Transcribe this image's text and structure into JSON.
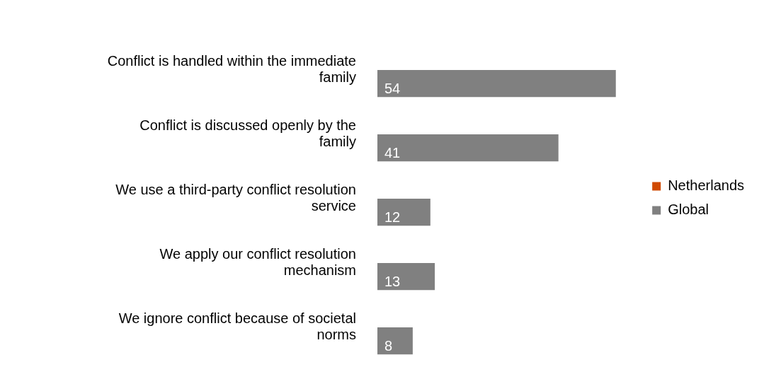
{
  "chart_data": {
    "type": "bar",
    "orientation": "horizontal",
    "categories": [
      "Conflict is handled within the immediate family",
      "Conflict is discussed openly by the family",
      "We use a third-party conflict resolution service",
      "We apply our conflict resolution mechanism",
      "We ignore conflict because of societal norms"
    ],
    "series": [
      {
        "name": "Netherlands",
        "color": "#d04a02",
        "values": [
          null,
          null,
          null,
          null,
          null
        ]
      },
      {
        "name": "Global",
        "color": "#808080",
        "values": [
          54,
          41,
          12,
          13,
          8
        ]
      }
    ],
    "data_labels": true,
    "legend": "right",
    "tick_labels": "y"
  }
}
